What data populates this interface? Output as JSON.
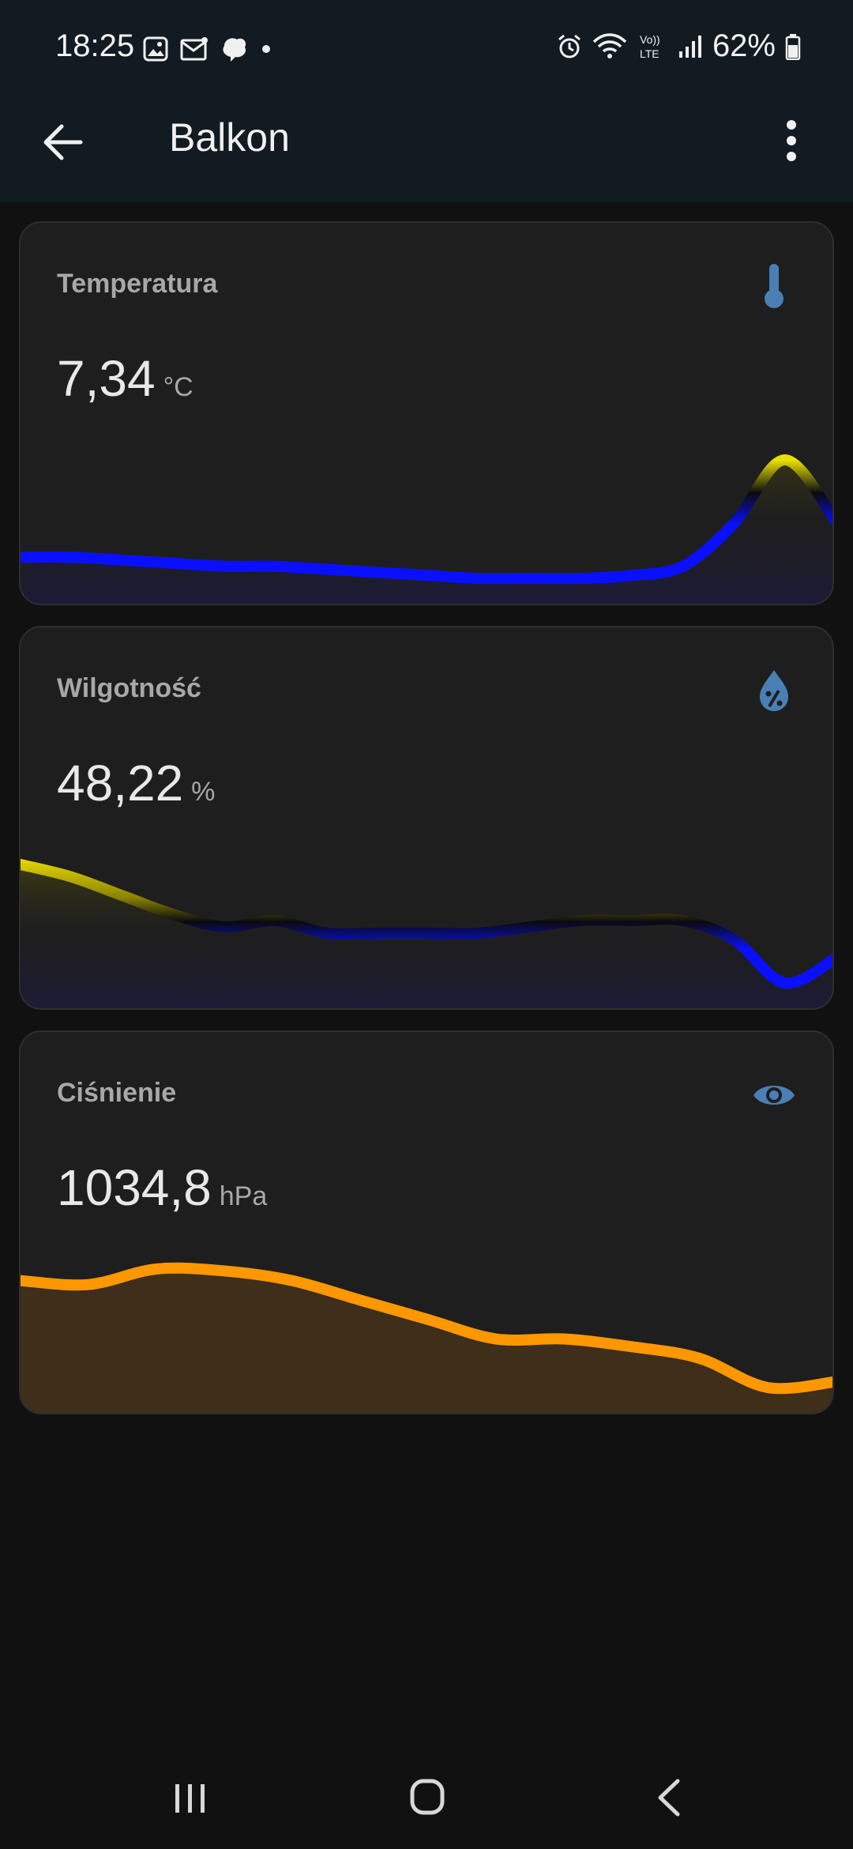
{
  "status_bar": {
    "time": "18:25",
    "battery_percent": "62%",
    "network": "LTE",
    "volte": "Vo))"
  },
  "app_bar": {
    "title": "Balkon"
  },
  "cards": [
    {
      "label": "Temperatura",
      "value": "7,34",
      "unit": "°C",
      "icon": "thermometer-icon",
      "accent": "#4a7fb5"
    },
    {
      "label": "Wilgotność",
      "value": "48,22",
      "unit": "%",
      "icon": "humidity-drop-icon",
      "accent": "#4a7fb5"
    },
    {
      "label": "Ciśnienie",
      "value": "1034,8",
      "unit": "hPa",
      "icon": "eye-icon",
      "accent": "#4a7fb5"
    }
  ],
  "chart_data": [
    {
      "type": "area",
      "series": [
        {
          "name": "Temperatura",
          "values": [
            6.2,
            6.2,
            6.1,
            6.0,
            5.9,
            5.9,
            5.8,
            5.7,
            5.6,
            5.5,
            5.5,
            5.5,
            5.6,
            5.9,
            7.3,
            9.4,
            7.4
          ]
        }
      ],
      "colors": {
        "low": "#0a10ff",
        "high": "#e8e000"
      }
    },
    {
      "type": "area",
      "series": [
        {
          "name": "Wilgotność",
          "values": [
            60,
            58,
            55,
            52,
            50,
            51,
            49,
            49,
            49,
            49,
            50,
            51,
            51,
            51,
            48,
            41,
            45
          ]
        }
      ],
      "colors": {
        "low": "#0a10ff",
        "high": "#f0e800"
      }
    },
    {
      "type": "area",
      "series": [
        {
          "name": "Ciśnienie",
          "values": [
            1040,
            1039.8,
            1040.6,
            1040.5,
            1040,
            1039,
            1038,
            1037,
            1037,
            1036.6,
            1036,
            1034.5,
            1034.8
          ]
        }
      ],
      "colors": {
        "line": "#ff9800",
        "fill": "#3e2e1a"
      }
    }
  ]
}
